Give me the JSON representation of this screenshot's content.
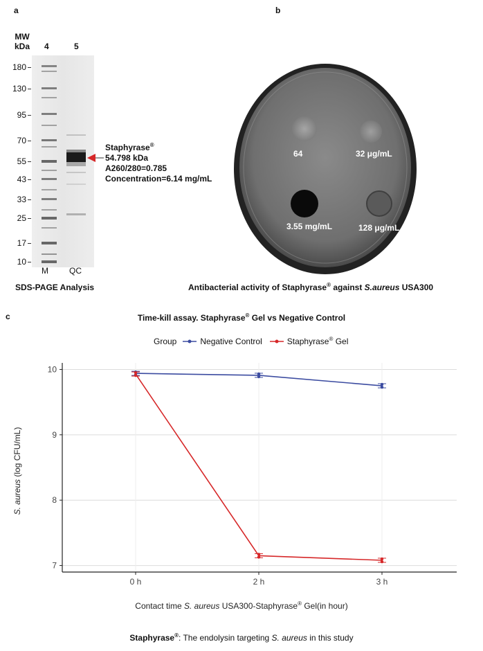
{
  "panel_a": {
    "letter": "a",
    "mw_label_line1": "MW",
    "mw_label_line2": "kDa",
    "lane_numbers": [
      "4",
      "5"
    ],
    "mw_ticks": [
      "180",
      "130",
      "95",
      "70",
      "55",
      "43",
      "33",
      "25",
      "17",
      "10"
    ],
    "lane_labels": [
      "M",
      "QC"
    ],
    "annotation": {
      "name": "Staphyrase",
      "reg": "®",
      "line2": "54.798 kDa",
      "line3": "A260/280=0.785",
      "line4": "Concentration=6.14 mg/mL"
    },
    "caption": "SDS-PAGE Analysis"
  },
  "panel_b": {
    "letter": "b",
    "zone_labels": {
      "top_left": "64",
      "top_right": "32 μg/mL",
      "bottom_left": "3.55 mg/mL",
      "bottom_right": "128 μg/mL"
    },
    "caption_pre": "Antibacterial activity of Staphyrase",
    "caption_reg": "®",
    "caption_mid": " against ",
    "caption_italic": "S.aureus",
    "caption_post": " USA300"
  },
  "panel_c": {
    "letter": "c",
    "title_pre": "Time-kill assay. Staphyrase",
    "title_reg": "®",
    "title_post": " Gel vs Negative Control",
    "legend_title": "Group",
    "legend_items": [
      "Negative Control",
      "Staphyrase"
    ],
    "legend_item2_reg": "®",
    "legend_item2_post": " Gel",
    "xlabel_pre": "Contact time  ",
    "xlabel_italic": "S. aureus",
    "xlabel_mid": " USA300-Staphyrase",
    "xlabel_reg": "®",
    "xlabel_post": " Gel(in hour)",
    "ylabel_italic": "S. aureus",
    "ylabel_post": " (log CFU/mL)"
  },
  "chart_data": {
    "type": "line",
    "categories": [
      "0 h",
      "2 h",
      "3 h"
    ],
    "yticks": [
      7,
      8,
      9,
      10
    ],
    "ylim": [
      6.9,
      10.1
    ],
    "grid": true,
    "legend_position": "top",
    "series": [
      {
        "name": "Negative Control",
        "color": "#3b4ba0",
        "values": [
          9.94,
          9.91,
          9.75
        ]
      },
      {
        "name": "Staphyrase® Gel",
        "color": "#d62728",
        "values": [
          9.93,
          7.15,
          7.08
        ]
      }
    ]
  },
  "footer": {
    "name": "Staphyrase",
    "reg": "®",
    "text_pre": ": The endolysin targeting ",
    "text_italic": "S. aureus",
    "text_post": " in this study"
  }
}
